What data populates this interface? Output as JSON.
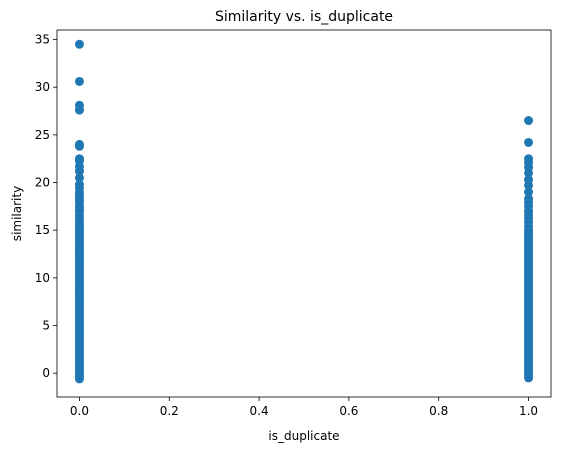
{
  "chart_data": {
    "type": "scatter",
    "title": "Similarity vs. is_duplicate",
    "xlabel": "is_duplicate",
    "ylabel": "similarity",
    "xlim": [
      -0.05,
      1.05
    ],
    "ylim": [
      -2.5,
      36
    ],
    "xticks": [
      0.0,
      0.2,
      0.4,
      0.6,
      0.8,
      1.0
    ],
    "xtick_labels": [
      "0.0",
      "0.2",
      "0.4",
      "0.6",
      "0.8",
      "1.0"
    ],
    "yticks": [
      0,
      5,
      10,
      15,
      20,
      25,
      30,
      35
    ],
    "ytick_labels": [
      "0",
      "5",
      "10",
      "15",
      "20",
      "25",
      "30",
      "35"
    ],
    "grid": false,
    "marker_color": "#1f77b4",
    "series": [
      {
        "x": 0.0,
        "dense_range": [
          -0.6,
          16.0
        ],
        "y": [
          16.3,
          16.6,
          17.0,
          17.3,
          17.6,
          18.0,
          18.3,
          18.6,
          18.9,
          19.4,
          19.8,
          20.5,
          21.2,
          21.7,
          22.3,
          22.5,
          23.8,
          24.0,
          27.6,
          28.1,
          30.6,
          34.5
        ]
      },
      {
        "x": 1.0,
        "dense_range": [
          -0.5,
          15.0
        ],
        "y": [
          15.4,
          15.8,
          16.2,
          16.6,
          17.0,
          17.5,
          17.9,
          18.3,
          19.0,
          19.7,
          20.3,
          21.0,
          21.6,
          22.1,
          22.5,
          24.2,
          26.5
        ]
      }
    ]
  }
}
